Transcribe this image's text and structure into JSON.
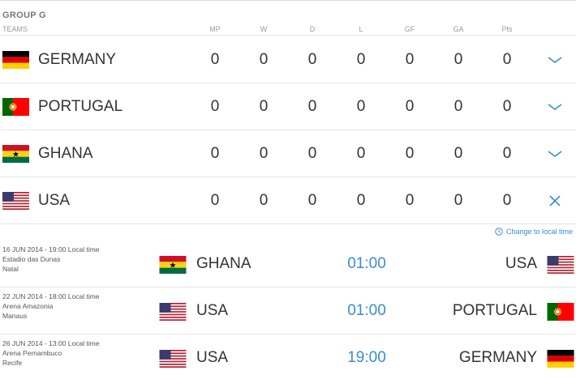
{
  "group": {
    "title": "GROUP G",
    "columns": {
      "teams": "TEAMS",
      "mp": "MP",
      "w": "W",
      "d": "D",
      "l": "L",
      "gf": "GF",
      "ga": "GA",
      "pts": "Pts"
    }
  },
  "standings": [
    {
      "name": "GERMANY",
      "flag": "germany-flag",
      "mp": "0",
      "w": "0",
      "d": "0",
      "l": "0",
      "gf": "0",
      "ga": "0",
      "pts": "0",
      "toggle_icon": "chevron-down-icon"
    },
    {
      "name": "PORTUGAL",
      "flag": "portugal-flag",
      "mp": "0",
      "w": "0",
      "d": "0",
      "l": "0",
      "gf": "0",
      "ga": "0",
      "pts": "0",
      "toggle_icon": "chevron-down-icon"
    },
    {
      "name": "GHANA",
      "flag": "ghana-flag",
      "mp": "0",
      "w": "0",
      "d": "0",
      "l": "0",
      "gf": "0",
      "ga": "0",
      "pts": "0",
      "toggle_icon": "chevron-down-icon"
    },
    {
      "name": "USA",
      "flag": "usa-flag",
      "mp": "0",
      "w": "0",
      "d": "0",
      "l": "0",
      "gf": "0",
      "ga": "0",
      "pts": "0",
      "toggle_icon": "close-icon"
    }
  ],
  "local_time_link": {
    "label": "Change to local time",
    "icon": "clock-icon"
  },
  "matches": [
    {
      "date": "16 JUN 2014 - 19:00 Local time",
      "stadium": "Estadio das Dunas",
      "city": "Natal",
      "home": "GHANA",
      "home_flag": "ghana-flag",
      "time": "01:00",
      "away": "USA",
      "away_flag": "usa-flag"
    },
    {
      "date": "22 JUN 2014 - 18:00 Local time",
      "stadium": "Arena Amazonia",
      "city": "Manaus",
      "home": "USA",
      "home_flag": "usa-flag",
      "time": "01:00",
      "away": "PORTUGAL",
      "away_flag": "portugal-flag"
    },
    {
      "date": "26 JUN 2014 - 13:00 Local time",
      "stadium": "Arena Pernambuco",
      "city": "Recife",
      "home": "USA",
      "home_flag": "usa-flag",
      "time": "19:00",
      "away": "GERMANY",
      "away_flag": "germany-flag"
    }
  ],
  "colors": {
    "accent": "#3a8cd0",
    "text": "#333333",
    "muted": "#999999",
    "divider": "#e6e6e6"
  }
}
